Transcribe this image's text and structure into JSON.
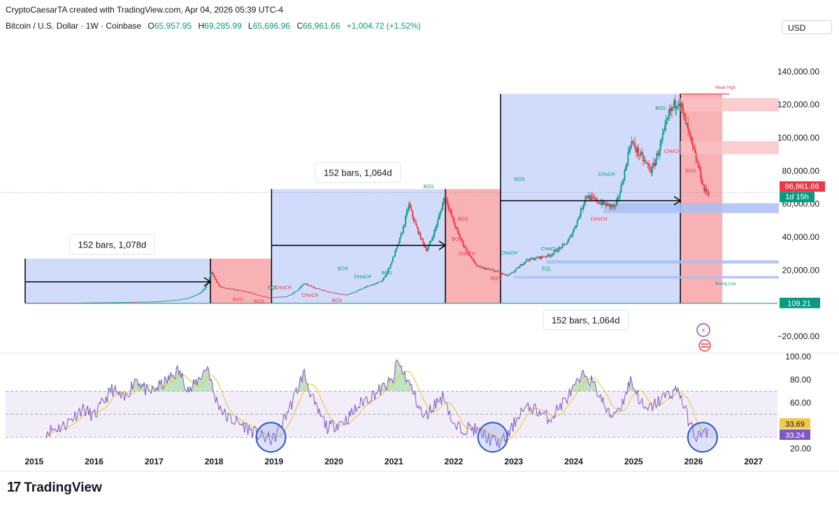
{
  "header": {
    "credit": "CryptoCaesarTA created with TradingView.com, Apr 04, 2026 05:39 UTC-4",
    "symbol": "Bitcoin / U.S. Dollar · 1W · Coinbase",
    "o_label": "O",
    "o_value": "65,957.95",
    "h_label": "H",
    "h_value": "69,285.99",
    "l_label": "L",
    "l_value": "65,696.96",
    "c_label": "C",
    "c_value": "66,961.66",
    "change": "+1,004.72 (+1.52%)",
    "currency": "USD"
  },
  "footer": {
    "brand": "TradingView"
  },
  "colors": {
    "up": "#089981",
    "down": "#f23645",
    "blue_zone": "#c9d6fb",
    "red_zone": "#f7a9ad",
    "rsi_line": "#7e57c2",
    "rsi_ma": "#f0c94a",
    "rsi_band": "#ede7f6"
  },
  "chart_data": [
    {
      "type": "candlestick",
      "title": "Bitcoin / U.S. Dollar · 1W · Coinbase",
      "x_range": [
        2014.85,
        2027.4
      ],
      "ylim": [
        -28000,
        160000
      ],
      "y_ticks": [
        140000,
        120000,
        100000,
        80000,
        60000,
        40000,
        20000,
        -20000
      ],
      "y_tick_labels": [
        "140,000.00",
        "120,000.00",
        "100,000.00",
        "80,000.00",
        "60,000.00",
        "40,000.00",
        "20,000.00",
        "−20,000.00"
      ],
      "x_ticks": [
        2015,
        2016,
        2017,
        2018,
        2019,
        2020,
        2021,
        2022,
        2023,
        2024,
        2025,
        2026,
        2027
      ],
      "x_tick_labels": [
        "2015",
        "2016",
        "2017",
        "2018",
        "2019",
        "2020",
        "2021",
        "2022",
        "2023",
        "2024",
        "2025",
        "2026",
        "2027"
      ],
      "price_path": [
        [
          2014.85,
          300
        ],
        [
          2015.5,
          250
        ],
        [
          2016.0,
          430
        ],
        [
          2016.5,
          650
        ],
        [
          2017.0,
          1000
        ],
        [
          2017.5,
          2600
        ],
        [
          2017.8,
          7000
        ],
        [
          2017.96,
          19000
        ],
        [
          2018.1,
          10000
        ],
        [
          2018.3,
          8500
        ],
        [
          2018.6,
          6500
        ],
        [
          2018.9,
          3500
        ],
        [
          2019.2,
          4000
        ],
        [
          2019.5,
          12000
        ],
        [
          2019.8,
          8000
        ],
        [
          2020.2,
          5000
        ],
        [
          2020.5,
          9500
        ],
        [
          2020.8,
          13500
        ],
        [
          2021.0,
          29000
        ],
        [
          2021.25,
          60000
        ],
        [
          2021.55,
          32000
        ],
        [
          2021.85,
          66000
        ],
        [
          2022.1,
          40000
        ],
        [
          2022.4,
          22000
        ],
        [
          2022.7,
          19500
        ],
        [
          2022.9,
          16500
        ],
        [
          2023.2,
          26000
        ],
        [
          2023.6,
          29000
        ],
        [
          2023.9,
          37000
        ],
        [
          2024.2,
          65000
        ],
        [
          2024.5,
          60000
        ],
        [
          2024.7,
          58000
        ],
        [
          2024.95,
          98000
        ],
        [
          2025.3,
          80000
        ],
        [
          2025.6,
          115000
        ],
        [
          2025.75,
          124000
        ],
        [
          2025.9,
          105000
        ],
        [
          2026.0,
          92000
        ],
        [
          2026.1,
          80000
        ],
        [
          2026.18,
          68000
        ],
        [
          2026.26,
          67000
        ]
      ],
      "current_price": 66961.66,
      "current_price_label": "66,961.66",
      "countdown_label": "1d 15h",
      "baseline_label": "109.21",
      "zones": [
        {
          "kind": "blue",
          "x0": 2014.85,
          "x1": 2017.94,
          "y0": 0,
          "y1": 27000
        },
        {
          "kind": "red",
          "x0": 2017.94,
          "x1": 2018.96,
          "y0": 0,
          "y1": 27000
        },
        {
          "kind": "blue",
          "x0": 2018.96,
          "x1": 2021.86,
          "y0": 0,
          "y1": 69000
        },
        {
          "kind": "red",
          "x0": 2021.86,
          "x1": 2022.78,
          "y0": 0,
          "y1": 69000
        },
        {
          "kind": "blue",
          "x0": 2022.78,
          "x1": 2025.78,
          "y0": 0,
          "y1": 126500
        },
        {
          "kind": "red",
          "x0": 2025.78,
          "x1": 2026.48,
          "y0": 0,
          "y1": 126500
        }
      ],
      "measures": [
        {
          "label": "152 bars, 1,078d",
          "x0": 2014.85,
          "x1": 2017.94,
          "y": 13000,
          "label_x": 2016.3,
          "label_y": 35500
        },
        {
          "label": "152 bars, 1,064d",
          "x0": 2018.96,
          "x1": 2021.86,
          "y": 35000,
          "label_x": 2020.4,
          "label_y": 79000
        },
        {
          "label": "152 bars, 1,064d",
          "x0": 2022.78,
          "x1": 2025.78,
          "y": 62000,
          "label_x": 2024.2,
          "label_y": -10000
        }
      ],
      "annotations": [
        {
          "text": "BOS",
          "x": 2020.15,
          "y": 20000,
          "color": "#089981"
        },
        {
          "text": "CHoCH",
          "x": 2020.48,
          "y": 15000,
          "color": "#089981"
        },
        {
          "text": "BOS",
          "x": 2020.88,
          "y": 17500,
          "color": "#089981"
        },
        {
          "text": "BOS",
          "x": 2021.58,
          "y": 69500,
          "color": "#089981"
        },
        {
          "text": "CHoCH",
          "x": 2019.15,
          "y": 8500,
          "color": "#f23645"
        },
        {
          "text": "EQL",
          "x": 2018.98,
          "y": 8500,
          "color": "#089981"
        },
        {
          "text": "CHoCH",
          "x": 2019.6,
          "y": 4000,
          "color": "#f23645"
        },
        {
          "text": "BOS",
          "x": 2018.4,
          "y": 1300,
          "color": "#f23645"
        },
        {
          "text": "BOS",
          "x": 2018.75,
          "y": 200,
          "color": "#f23645"
        },
        {
          "text": "BOS",
          "x": 2020.05,
          "y": 800,
          "color": "#f23645"
        },
        {
          "text": "BOS",
          "x": 2022.15,
          "y": 50000,
          "color": "#f23645"
        },
        {
          "text": "BOS",
          "x": 2022.05,
          "y": 38000,
          "color": "#f23645"
        },
        {
          "text": "CHoCH",
          "x": 2022.22,
          "y": 29000,
          "color": "#f23645"
        },
        {
          "text": "BOS",
          "x": 2022.7,
          "y": 14000,
          "color": "#f23645"
        },
        {
          "text": "CHoCH",
          "x": 2022.92,
          "y": 29500,
          "color": "#089981"
        },
        {
          "text": "BOS",
          "x": 2023.1,
          "y": 74000,
          "color": "#089981"
        },
        {
          "text": "CHoCH",
          "x": 2023.6,
          "y": 32000,
          "color": "#089981"
        },
        {
          "text": "EQL",
          "x": 2023.55,
          "y": 20000,
          "color": "#089981"
        },
        {
          "text": "CHoCH",
          "x": 2024.55,
          "y": 77000,
          "color": "#089981"
        },
        {
          "text": "CHoCH",
          "x": 2024.42,
          "y": 50000,
          "color": "#f23645"
        },
        {
          "text": "BOS",
          "x": 2025.45,
          "y": 117000,
          "color": "#089981"
        },
        {
          "text": "CHoCH",
          "x": 2025.65,
          "y": 91000,
          "color": "#f23645"
        },
        {
          "text": "BOS",
          "x": 2025.95,
          "y": 79000,
          "color": "#f23645"
        },
        {
          "text": "Weak High",
          "x": 2026.53,
          "y": 129500,
          "color": "#f23645"
        },
        {
          "text": "Strong Low",
          "x": 2026.53,
          "y": 11000,
          "color": "#089981"
        }
      ],
      "supply_zones": [
        {
          "x0": 2025.78,
          "x1": 2027.5,
          "y0": 116000,
          "y1": 124000
        },
        {
          "x0": 2025.78,
          "x1": 2027.5,
          "y0": 90000,
          "y1": 98000
        }
      ],
      "demand_zones": [
        {
          "x0": 2024.5,
          "x1": 2027.5,
          "y0": 54500,
          "y1": 60500
        },
        {
          "x0": 2023.55,
          "x1": 2027.5,
          "y0": 24000,
          "y1": 26000
        },
        {
          "x0": 2023.0,
          "x1": 2027.5,
          "y0": 15000,
          "y1": 16500
        }
      ]
    },
    {
      "type": "line",
      "title": "RSI",
      "x_range": [
        2014.85,
        2027.4
      ],
      "ylim": [
        18,
        100
      ],
      "y_ticks": [
        100,
        80,
        60,
        20
      ],
      "y_tick_labels": [
        "100.00",
        "80.00",
        "60.00",
        "20.00"
      ],
      "band": [
        30,
        70
      ],
      "midline": 50,
      "rsi_value_label": "33.24",
      "ma_value_label": "33.69",
      "rsi_points": [
        [
          2015.2,
          35
        ],
        [
          2015.5,
          40
        ],
        [
          2015.8,
          55
        ],
        [
          2016.0,
          48
        ],
        [
          2016.3,
          72
        ],
        [
          2016.5,
          62
        ],
        [
          2016.7,
          82
        ],
        [
          2016.9,
          68
        ],
        [
          2017.2,
          78
        ],
        [
          2017.4,
          88
        ],
        [
          2017.6,
          70
        ],
        [
          2017.9,
          92
        ],
        [
          2018.0,
          66
        ],
        [
          2018.2,
          48
        ],
        [
          2018.5,
          40
        ],
        [
          2018.8,
          30
        ],
        [
          2019.0,
          28
        ],
        [
          2019.3,
          60
        ],
        [
          2019.5,
          86
        ],
        [
          2019.7,
          55
        ],
        [
          2019.9,
          38
        ],
        [
          2020.2,
          45
        ],
        [
          2020.5,
          62
        ],
        [
          2020.8,
          72
        ],
        [
          2021.0,
          80
        ],
        [
          2021.05,
          97
        ],
        [
          2021.3,
          72
        ],
        [
          2021.5,
          46
        ],
        [
          2021.7,
          60
        ],
        [
          2021.85,
          66
        ],
        [
          2022.0,
          38
        ],
        [
          2022.3,
          38
        ],
        [
          2022.5,
          32
        ],
        [
          2022.6,
          28
        ],
        [
          2022.75,
          25
        ],
        [
          2022.9,
          30
        ],
        [
          2023.1,
          52
        ],
        [
          2023.3,
          56
        ],
        [
          2023.6,
          46
        ],
        [
          2023.9,
          65
        ],
        [
          2024.2,
          86
        ],
        [
          2024.4,
          70
        ],
        [
          2024.6,
          48
        ],
        [
          2024.8,
          58
        ],
        [
          2024.95,
          80
        ],
        [
          2025.2,
          52
        ],
        [
          2025.5,
          65
        ],
        [
          2025.75,
          72
        ],
        [
          2025.85,
          55
        ],
        [
          2025.95,
          40
        ],
        [
          2026.05,
          30
        ],
        [
          2026.15,
          33
        ],
        [
          2026.25,
          33
        ]
      ]
    }
  ]
}
